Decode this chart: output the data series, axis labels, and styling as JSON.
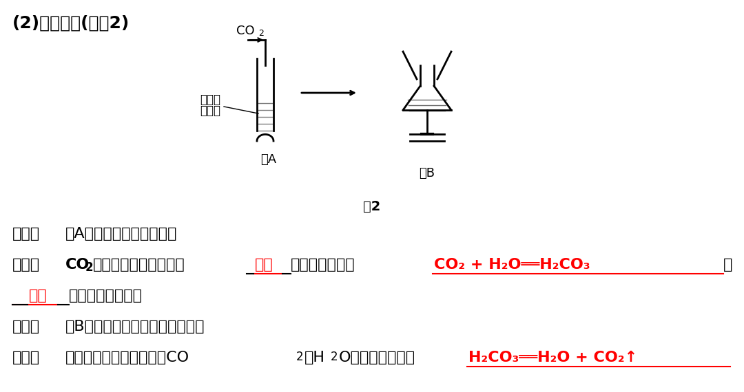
{
  "bg_color": "#ffffff",
  "title_line": "(2)与水反应(如图2)",
  "fig2_caption": "图2",
  "line1_label": "现象：",
  "line1_text": "图A紫色石蕊溶液变红色。",
  "line2_label": "解释：",
  "line2_text1": "CO",
  "line2_text1_sub": "2",
  "line2_text2": "通入紫色石蕊溶液生成",
  "line2_underline1": "碳酸",
  "line2_text3": "，化学方程式为",
  "line2_eq1": "CO₂ + H₂O══H₂CO₃",
  "line2_comma": "，",
  "line3_underline2": "碳酸",
  "line3_text": "使溶液变为红色。",
  "line4_label": "现象：",
  "line4_text": "图B红色溶液加热后又变为紫色。",
  "line5_label": "解释：",
  "line5_text": "碳酸不稳定，容易分解成CO",
  "line5_sub1": "2",
  "line5_text2": "和H",
  "line5_sub2": "2",
  "line5_text3": "O，化学方程式为",
  "line5_eq": "H₂CO₃══H₂O + CO₂↑"
}
